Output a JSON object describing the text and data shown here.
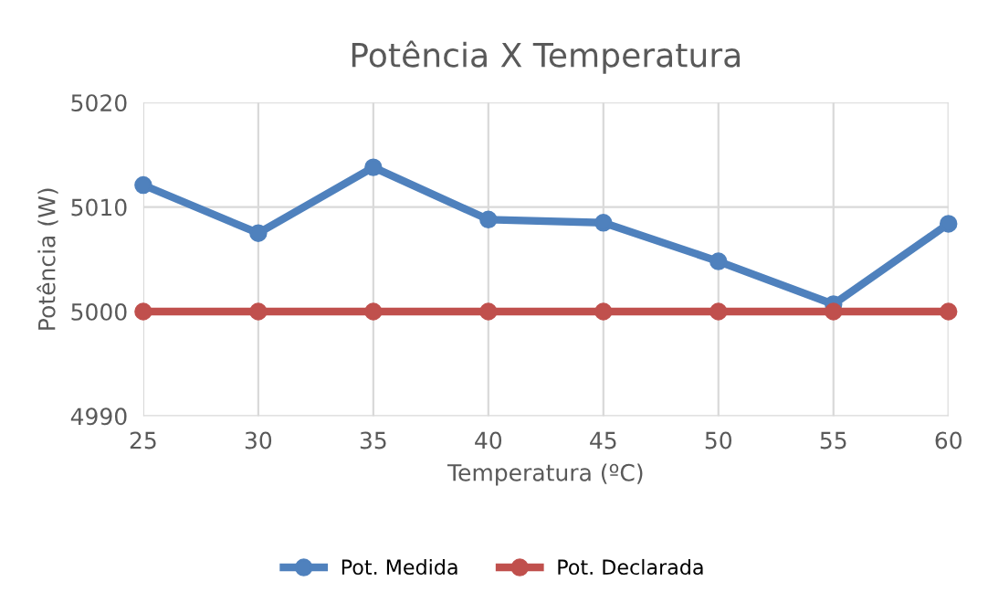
{
  "chart_data": {
    "type": "line",
    "title": "Potência X Temperatura",
    "xlabel": "Temperatura (ºC)",
    "ylabel": "Potência (W)",
    "x": [
      25,
      30,
      35,
      40,
      45,
      50,
      55,
      60
    ],
    "series": [
      {
        "name": "Pot. Medida",
        "color": "#4f81bd",
        "values": [
          5012.1,
          5007.5,
          5013.8,
          5008.8,
          5008.5,
          5004.8,
          5000.7,
          5008.4
        ]
      },
      {
        "name": "Pot. Declarada",
        "color": "#c0504d",
        "values": [
          5000,
          5000,
          5000,
          5000,
          5000,
          5000,
          5000,
          5000
        ]
      }
    ],
    "xlim": [
      25,
      60
    ],
    "xticks": [
      25,
      30,
      35,
      40,
      45,
      50,
      55,
      60
    ],
    "ylim": [
      4990,
      5020
    ],
    "yticks": [
      4990,
      5000,
      5010,
      5020
    ],
    "grid": true,
    "legend": "bottom",
    "marker": "circle",
    "line_style": "solid"
  }
}
